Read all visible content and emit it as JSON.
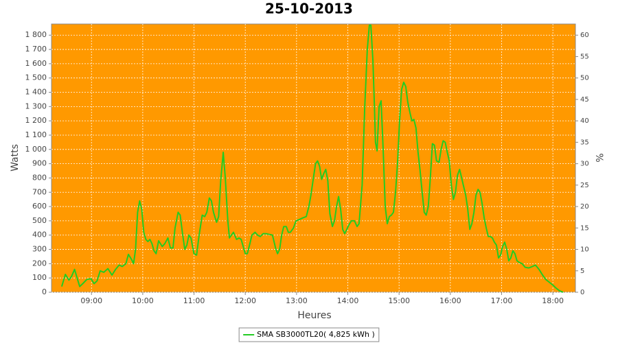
{
  "chart_data": {
    "type": "line",
    "title": "25-10-2013",
    "xlabel": "Heures",
    "ylabel": "Watts",
    "y2label": "%",
    "background": "#ff9900",
    "grid": true,
    "legend": "bottom",
    "xlim": [
      8.22,
      18.44
    ],
    "xticks": [
      {
        "value": 9,
        "label": "09:00"
      },
      {
        "value": 10,
        "label": "10:00"
      },
      {
        "value": 11,
        "label": "11:00"
      },
      {
        "value": 12,
        "label": "12:00"
      },
      {
        "value": 13,
        "label": "13:00"
      },
      {
        "value": 14,
        "label": "14:00"
      },
      {
        "value": 15,
        "label": "15:00"
      },
      {
        "value": 16,
        "label": "16:00"
      },
      {
        "value": 17,
        "label": "17:00"
      },
      {
        "value": 18,
        "label": "18:00"
      }
    ],
    "ylim": [
      0,
      1878
    ],
    "yticks": [
      0,
      100,
      200,
      300,
      400,
      500,
      600,
      700,
      800,
      900,
      {
        "value": 1000,
        "label": "1 000"
      },
      {
        "value": 1100,
        "label": "1 100"
      },
      {
        "value": 1200,
        "label": "1 200"
      },
      {
        "value": 1300,
        "label": "1 300"
      },
      {
        "value": 1400,
        "label": "1 400"
      },
      {
        "value": 1500,
        "label": "1 500"
      },
      {
        "value": 1600,
        "label": "1 600"
      },
      {
        "value": 1700,
        "label": "1 700"
      },
      {
        "value": 1800,
        "label": "1 800"
      }
    ],
    "y2lim": [
      0,
      62.6
    ],
    "y2ticks": [
      0,
      5,
      10,
      15,
      20,
      25,
      30,
      35,
      40,
      45,
      50,
      55,
      60
    ],
    "x": [
      8.42,
      8.49,
      8.56,
      8.61,
      8.67,
      8.72,
      8.77,
      8.83,
      8.91,
      8.99,
      9.05,
      9.11,
      9.17,
      9.24,
      9.32,
      9.4,
      9.47,
      9.54,
      9.6,
      9.67,
      9.72,
      9.78,
      9.82,
      9.86,
      9.9,
      9.94,
      9.98,
      10.02,
      10.06,
      10.1,
      10.14,
      10.18,
      10.22,
      10.26,
      10.31,
      10.38,
      10.43,
      10.49,
      10.54,
      10.59,
      10.63,
      10.69,
      10.73,
      10.78,
      10.82,
      10.86,
      10.9,
      10.94,
      11.0,
      11.05,
      11.1,
      11.16,
      11.21,
      11.25,
      11.3,
      11.34,
      11.38,
      11.44,
      11.48,
      11.52,
      11.57,
      11.61,
      11.66,
      11.69,
      11.73,
      11.77,
      11.83,
      11.88,
      11.92,
      11.96,
      12.0,
      12.04,
      12.09,
      12.13,
      12.19,
      12.24,
      12.29,
      12.35,
      12.4,
      12.47,
      12.53,
      12.59,
      12.63,
      12.67,
      12.71,
      12.75,
      12.8,
      12.84,
      12.88,
      12.94,
      12.99,
      13.06,
      13.12,
      13.19,
      13.24,
      13.28,
      13.32,
      13.37,
      13.41,
      13.45,
      13.49,
      13.53,
      13.57,
      13.61,
      13.65,
      13.7,
      13.74,
      13.78,
      13.82,
      13.86,
      13.9,
      13.94,
      13.98,
      14.02,
      14.07,
      14.13,
      14.18,
      14.22,
      14.28,
      14.33,
      14.38,
      14.42,
      14.45,
      14.49,
      14.52,
      14.54,
      14.57,
      14.61,
      14.65,
      14.69,
      14.73,
      14.77,
      14.81,
      14.85,
      14.89,
      14.93,
      14.97,
      15.01,
      15.05,
      15.09,
      15.13,
      15.17,
      15.21,
      15.25,
      15.29,
      15.33,
      15.37,
      15.41,
      15.45,
      15.49,
      15.53,
      15.57,
      15.61,
      15.65,
      15.69,
      15.73,
      15.78,
      15.82,
      15.86,
      15.9,
      15.94,
      15.98,
      16.02,
      16.06,
      16.1,
      16.14,
      16.18,
      16.22,
      16.26,
      16.3,
      16.34,
      16.38,
      16.42,
      16.46,
      16.5,
      16.54,
      16.58,
      16.62,
      16.66,
      16.7,
      16.74,
      16.78,
      16.82,
      16.86,
      16.9,
      16.94,
      16.98,
      17.02,
      17.06,
      17.1,
      17.14,
      17.18,
      17.22,
      17.26,
      17.3,
      17.34,
      17.4,
      17.46,
      17.53,
      17.6,
      17.66,
      17.73,
      17.8,
      17.86,
      17.93,
      18.0,
      18.06,
      18.13,
      18.2
    ],
    "series": [
      {
        "name": "SMA SB3000TL20( 4,825 kWh )",
        "color": "#22cc22",
        "values": [
          40,
          125,
          85,
          110,
          160,
          100,
          40,
          60,
          90,
          95,
          60,
          80,
          150,
          140,
          165,
          120,
          160,
          190,
          180,
          200,
          265,
          230,
          200,
          300,
          560,
          640,
          580,
          420,
          370,
          355,
          370,
          340,
          290,
          270,
          360,
          320,
          340,
          380,
          310,
          310,
          450,
          560,
          540,
          400,
          300,
          330,
          400,
          380,
          270,
          260,
          400,
          540,
          530,
          560,
          660,
          640,
          560,
          490,
          530,
          780,
          980,
          800,
          500,
          380,
          400,
          420,
          370,
          380,
          370,
          320,
          270,
          270,
          340,
          400,
          420,
          400,
          390,
          410,
          410,
          405,
          400,
          310,
          270,
          300,
          400,
          460,
          460,
          420,
          420,
          450,
          500,
          510,
          520,
          530,
          600,
          680,
          780,
          900,
          920,
          880,
          790,
          830,
          860,
          780,
          550,
          460,
          500,
          600,
          670,
          580,
          440,
          410,
          440,
          470,
          500,
          500,
          460,
          480,
          750,
          1300,
          1700,
          1870,
          1870,
          1620,
          1300,
          1050,
          990,
          1300,
          1340,
          1000,
          600,
          480,
          530,
          540,
          560,
          700,
          900,
          1200,
          1420,
          1470,
          1440,
          1330,
          1260,
          1200,
          1210,
          1150,
          980,
          850,
          700,
          560,
          540,
          600,
          800,
          1040,
          1030,
          920,
          910,
          1000,
          1060,
          1050,
          980,
          920,
          750,
          650,
          700,
          820,
          860,
          800,
          740,
          680,
          580,
          440,
          480,
          560,
          680,
          720,
          700,
          620,
          520,
          450,
          390,
          390,
          380,
          350,
          330,
          240,
          260,
          320,
          350,
          300,
          220,
          240,
          290,
          270,
          220,
          210,
          200,
          175,
          170,
          180,
          190,
          160,
          120,
          90,
          70,
          50,
          30,
          10,
          0
        ]
      }
    ]
  }
}
